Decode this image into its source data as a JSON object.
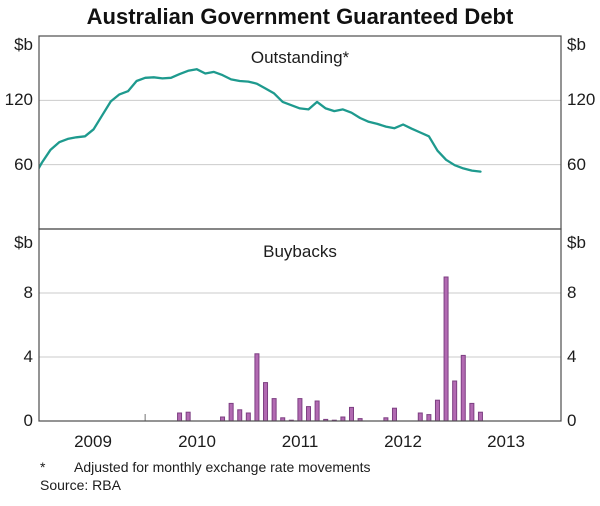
{
  "title": "Australian Government Guaranteed Debt",
  "panels": {
    "top_label": "Outstanding*",
    "bottom_label": "Buybacks"
  },
  "labels": {
    "unit_top": "$b",
    "unit_bottom": "$b",
    "t120": "120",
    "t60": "60",
    "b8": "8",
    "b4": "4",
    "b0": "0"
  },
  "years": [
    "2009",
    "2010",
    "2011",
    "2012",
    "2013"
  ],
  "footnote": {
    "marker": "*",
    "text": "Adjusted for monthly exchange rate movements",
    "source": "Source: RBA"
  },
  "colors": {
    "line": "#1e9a8e",
    "bar_fill": "#b26ab2",
    "bar_stroke": "#7d3f82",
    "grid": "#cbcbcb",
    "border": "#4d4d4d",
    "tick": "#8a8a8a"
  },
  "chart_data": [
    {
      "type": "line",
      "title": "Outstanding*",
      "ylabel": "$b",
      "ylim": [
        0,
        180
      ],
      "yticks": [
        60,
        120
      ],
      "grid": true,
      "x": [
        "Dec-08",
        "Jan-09",
        "Feb-09",
        "Mar-09",
        "Apr-09",
        "May-09",
        "Jun-09",
        "Jul-09",
        "Aug-09",
        "Sep-09",
        "Oct-09",
        "Nov-09",
        "Dec-09",
        "Jan-10",
        "Feb-10",
        "Mar-10",
        "Apr-10",
        "May-10",
        "Jun-10",
        "Jul-10",
        "Aug-10",
        "Sep-10",
        "Oct-10",
        "Nov-10",
        "Dec-10",
        "Jan-11",
        "Feb-11",
        "Mar-11",
        "Apr-11",
        "May-11",
        "Jun-11",
        "Jul-11",
        "Aug-11",
        "Sep-11",
        "Oct-11",
        "Nov-11",
        "Dec-11",
        "Jan-12",
        "Feb-12",
        "Mar-12",
        "Apr-12",
        "May-12",
        "Jun-12",
        "Jul-12",
        "Aug-12",
        "Sep-12",
        "Oct-12",
        "Nov-12",
        "Dec-12",
        "Jan-13",
        "Feb-13",
        "Mar-13",
        "Apr-13"
      ],
      "values": [
        48,
        62,
        74,
        81,
        84,
        85.5,
        86.5,
        93,
        106,
        119,
        125.5,
        128.5,
        138,
        141,
        141.5,
        140.5,
        141,
        144.5,
        147.5,
        149,
        145,
        146.5,
        143.5,
        139.5,
        138,
        137.5,
        135.5,
        131,
        126.5,
        118.5,
        115.5,
        112.5,
        111.5,
        118.5,
        112.5,
        110,
        111.5,
        108.5,
        103.5,
        100,
        98,
        95.5,
        94,
        97.5,
        93.5,
        90,
        86.5,
        73,
        64.5,
        59.5,
        56.5,
        54.5,
        53.5
      ]
    },
    {
      "type": "bar",
      "title": "Buybacks",
      "ylabel": "$b",
      "ylim": [
        0,
        12
      ],
      "yticks": [
        0,
        4,
        8
      ],
      "grid": true,
      "x": [
        "Dec-08",
        "Jan-09",
        "Feb-09",
        "Mar-09",
        "Apr-09",
        "May-09",
        "Jun-09",
        "Jul-09",
        "Aug-09",
        "Sep-09",
        "Oct-09",
        "Nov-09",
        "Dec-09",
        "Jan-10",
        "Feb-10",
        "Mar-10",
        "Apr-10",
        "May-10",
        "Jun-10",
        "Jul-10",
        "Aug-10",
        "Sep-10",
        "Oct-10",
        "Nov-10",
        "Dec-10",
        "Jan-11",
        "Feb-11",
        "Mar-11",
        "Apr-11",
        "May-11",
        "Jun-11",
        "Jul-11",
        "Aug-11",
        "Sep-11",
        "Oct-11",
        "Nov-11",
        "Dec-11",
        "Jan-12",
        "Feb-12",
        "Mar-12",
        "Apr-12",
        "May-12",
        "Jun-12",
        "Jul-12",
        "Aug-12",
        "Sep-12",
        "Oct-12",
        "Nov-12",
        "Dec-12",
        "Jan-13",
        "Feb-13",
        "Mar-13",
        "Apr-13"
      ],
      "values": [
        0,
        0,
        0,
        0,
        0,
        0,
        0,
        0,
        0,
        0,
        0,
        0,
        0,
        0,
        0,
        0,
        0,
        0.5,
        0.55,
        0,
        0,
        0,
        0.25,
        1.1,
        0.7,
        0.5,
        4.2,
        2.4,
        1.4,
        0.2,
        0.05,
        1.4,
        0.9,
        1.25,
        0.1,
        0.05,
        0.25,
        0.85,
        0.15,
        0,
        0,
        0.2,
        0.8,
        0,
        0,
        0.5,
        0.4,
        1.3,
        9.0,
        2.5,
        4.1,
        1.1,
        0.55
      ]
    }
  ]
}
